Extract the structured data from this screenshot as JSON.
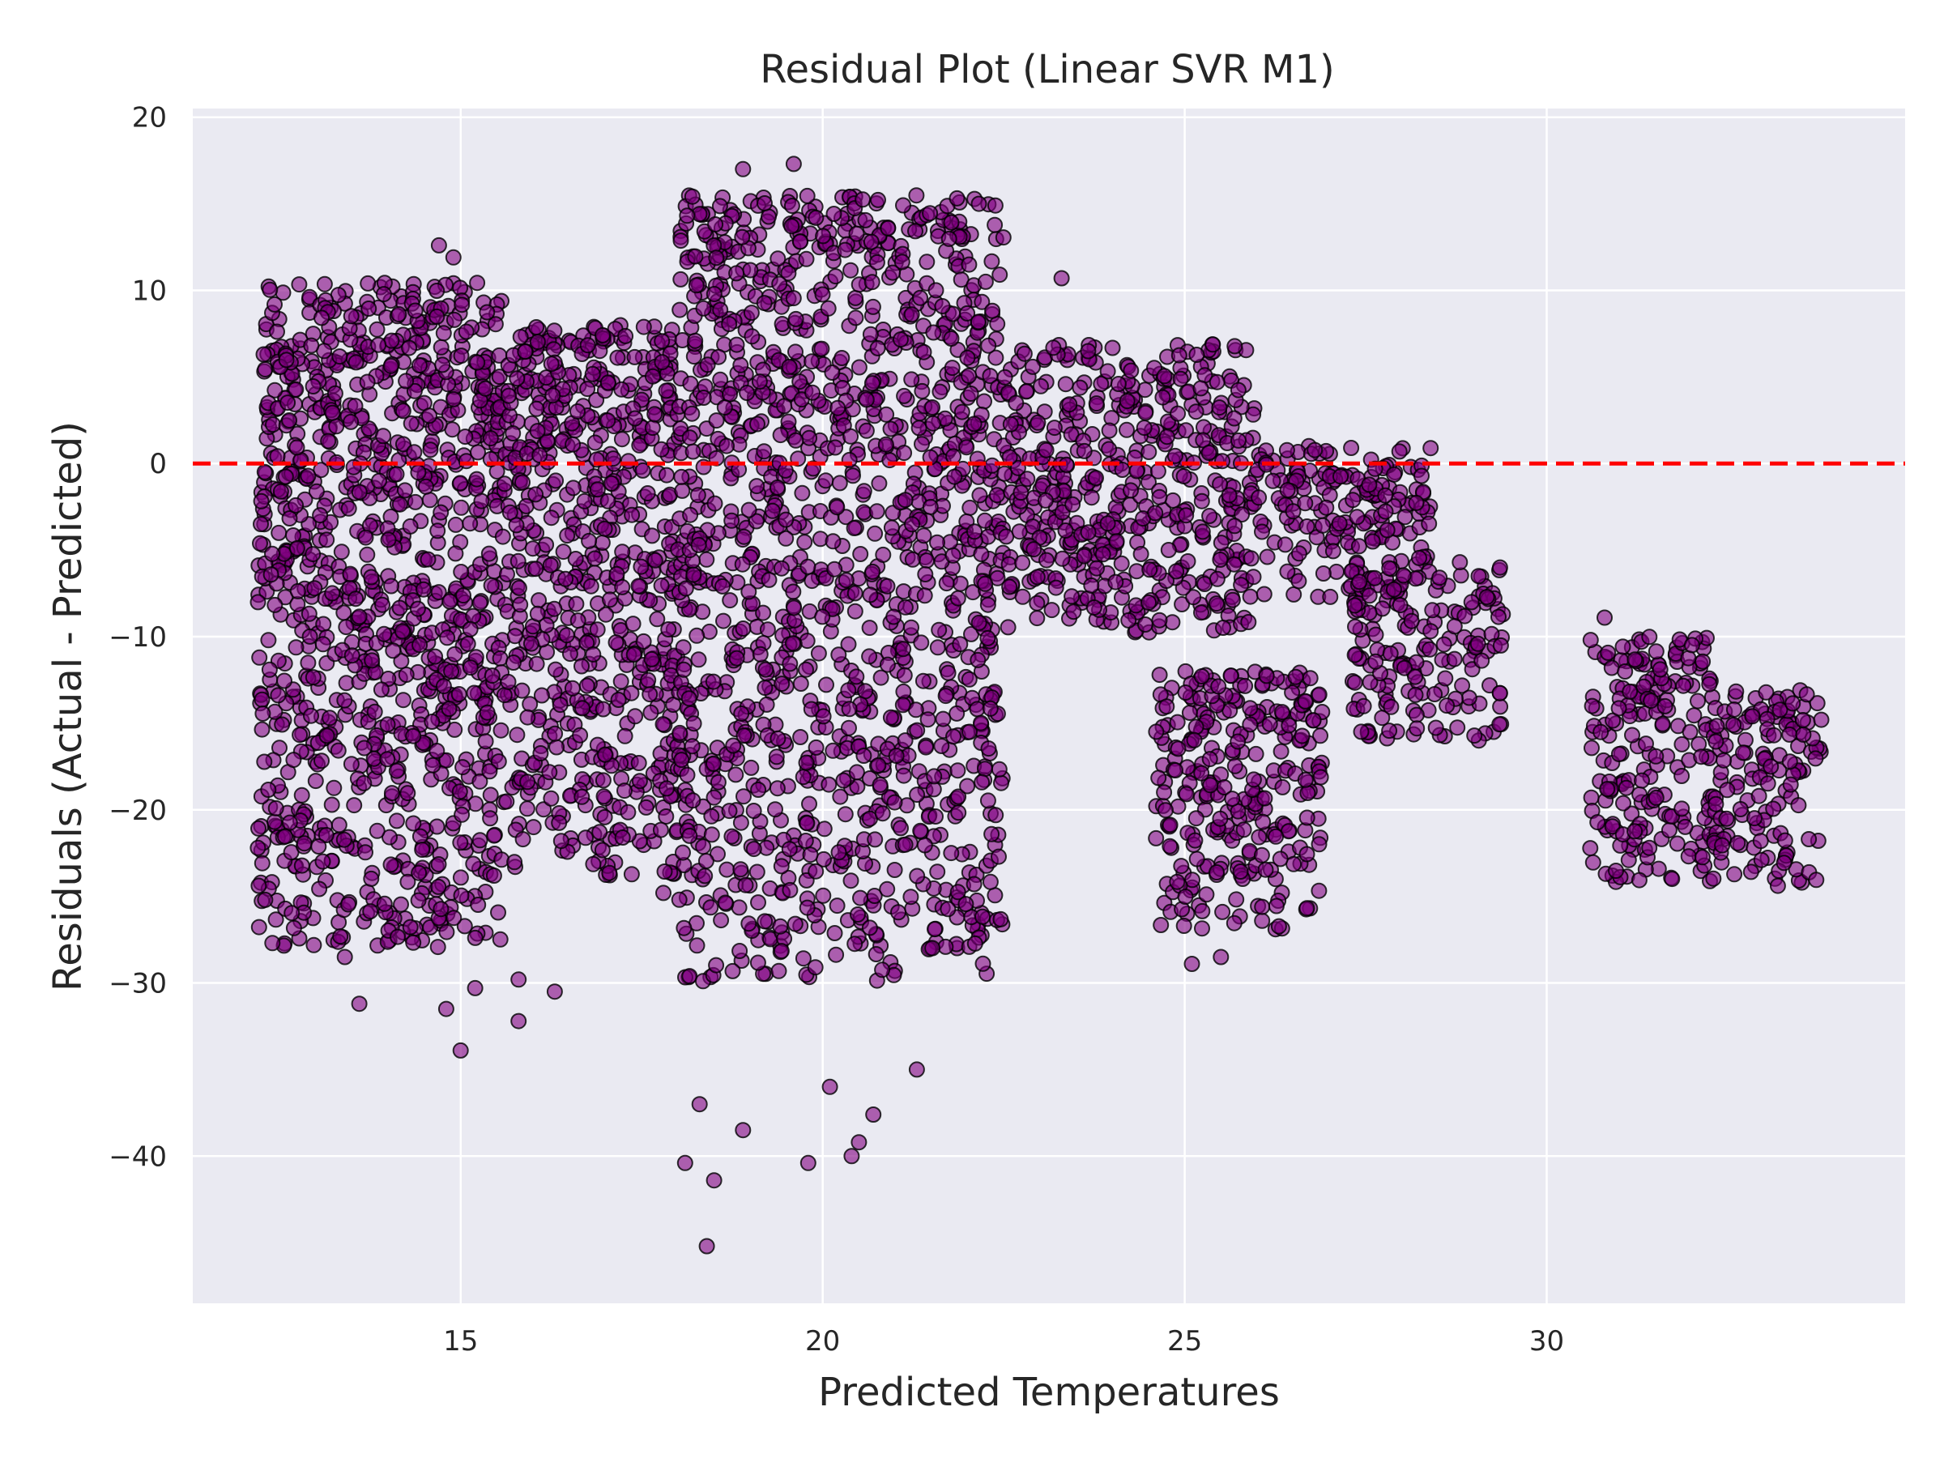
{
  "chart_data": {
    "type": "scatter",
    "title": "Residual Plot (Linear SVR M1)",
    "xlabel": "Predicted Temperatures",
    "ylabel": "Residuals (Actual - Predicted)",
    "xlim": [
      11.3,
      34.95
    ],
    "ylim": [
      -48.5,
      20.5
    ],
    "xticks": [
      15,
      20,
      25,
      30
    ],
    "yticks": [
      -40,
      -30,
      -20,
      -10,
      0,
      10,
      20
    ],
    "xtick_labels": [
      "15",
      "20",
      "25",
      "30"
    ],
    "ytick_labels": [
      "−40",
      "−30",
      "−20",
      "−10",
      "0",
      "10",
      "20"
    ],
    "grid": true,
    "reference_line": {
      "y": 0,
      "style": "dashed",
      "color": "#ff0000"
    },
    "point_color": "#800080",
    "point_edge_color": "#000000",
    "background_color": "#eaeaf2",
    "regions": [
      {
        "x": [
          12.2,
          15.6
        ],
        "y_bottom": -28,
        "y_top": 10.5
      },
      {
        "x": [
          15.6,
          18.0
        ],
        "y_bottom": -24,
        "y_top": 8
      },
      {
        "x": [
          18.0,
          22.5
        ],
        "y_bottom": -30,
        "y_top": 15.5
      },
      {
        "x": [
          22.5,
          26.0
        ],
        "y_bottom": -10,
        "y_top": 7
      },
      {
        "x": [
          26.0,
          28.4
        ],
        "y_bottom": -8,
        "y_top": 1
      },
      {
        "x": [
          24.6,
          26.9
        ],
        "y_bottom": -27,
        "y_top": -12
      },
      {
        "x": [
          27.3,
          29.4
        ],
        "y_bottom": -16,
        "y_top": -6
      },
      {
        "x": [
          30.6,
          32.3
        ],
        "y_bottom": -24.5,
        "y_top": -10
      },
      {
        "x": [
          32.3,
          33.8
        ],
        "y_bottom": -24.5,
        "y_top": -13
      }
    ],
    "outlier_points": [
      [
        13.4,
        -28.5
      ],
      [
        13.6,
        -31.2
      ],
      [
        14.8,
        -31.5
      ],
      [
        15.2,
        -30.3
      ],
      [
        15.0,
        -33.9
      ],
      [
        15.8,
        -29.8
      ],
      [
        15.8,
        -32.2
      ],
      [
        16.3,
        -30.5
      ],
      [
        17.8,
        -24.8
      ],
      [
        18.1,
        -40.4
      ],
      [
        18.4,
        -45.2
      ],
      [
        18.5,
        -41.4
      ],
      [
        18.3,
        -37.0
      ],
      [
        18.9,
        -38.5
      ],
      [
        19.8,
        -40.4
      ],
      [
        20.4,
        -40.0
      ],
      [
        20.5,
        -39.2
      ],
      [
        14.7,
        12.6
      ],
      [
        14.9,
        11.9
      ],
      [
        19.6,
        17.3
      ],
      [
        18.9,
        17.0
      ],
      [
        23.3,
        10.7
      ],
      [
        30.8,
        -8.9
      ],
      [
        28.8,
        -5.7
      ],
      [
        25.1,
        -28.9
      ],
      [
        25.5,
        -28.5
      ],
      [
        12.2,
        -22.2
      ],
      [
        12.3,
        -25.2
      ],
      [
        20.1,
        -36.0
      ],
      [
        20.7,
        -37.6
      ],
      [
        21.3,
        -35.0
      ]
    ]
  }
}
